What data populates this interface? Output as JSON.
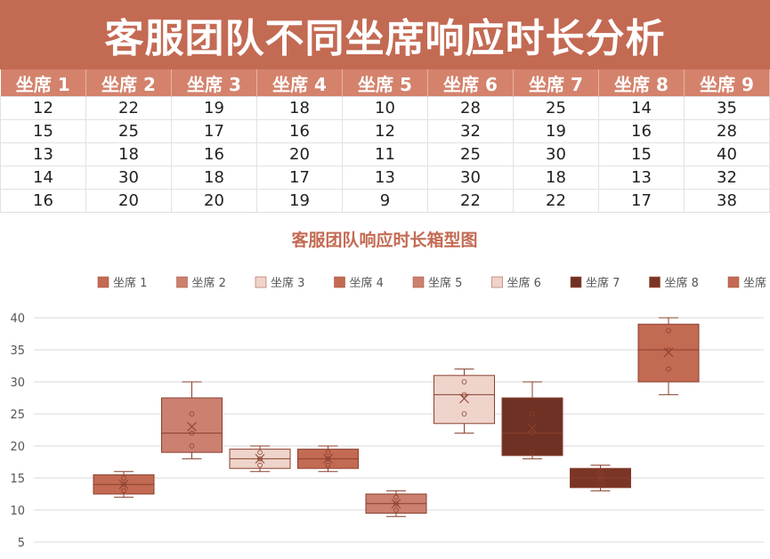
{
  "header": {
    "title": "客服团队不同坐席响应时长分析"
  },
  "table": {
    "columns": [
      "坐席 1",
      "坐席 2",
      "坐席 3",
      "坐席 4",
      "坐席 5",
      "坐席 6",
      "坐席 7",
      "坐席 8",
      "坐席 9"
    ],
    "rows": [
      [
        "12",
        "22",
        "19",
        "18",
        "10",
        "28",
        "25",
        "14",
        "35"
      ],
      [
        "15",
        "25",
        "17",
        "16",
        "12",
        "32",
        "19",
        "16",
        "28"
      ],
      [
        "13",
        "18",
        "16",
        "20",
        "11",
        "25",
        "30",
        "15",
        "40"
      ],
      [
        "14",
        "30",
        "18",
        "17",
        "13",
        "30",
        "18",
        "13",
        "32"
      ],
      [
        "16",
        "20",
        "20",
        "19",
        "9",
        "22",
        "22",
        "17",
        "38"
      ]
    ]
  },
  "chart_data": {
    "type": "box",
    "title": "客服团队响应时长箱型图",
    "legend_position": "top",
    "grid": true,
    "ylim": [
      5,
      40
    ],
    "yticks": [
      "5",
      "10",
      "15",
      "20",
      "25",
      "30",
      "35",
      "40"
    ],
    "series": [
      {
        "name": "坐席 1",
        "color": "#c36a53",
        "values": [
          12,
          15,
          13,
          14,
          16
        ]
      },
      {
        "name": "坐席 2",
        "color": "#cb8070",
        "values": [
          22,
          25,
          18,
          30,
          20
        ]
      },
      {
        "name": "坐席 3",
        "color": "#eed4cb",
        "values": [
          19,
          17,
          16,
          18,
          20
        ]
      },
      {
        "name": "坐席 4",
        "color": "#c36a53",
        "values": [
          18,
          16,
          20,
          17,
          19
        ]
      },
      {
        "name": "坐席 5",
        "color": "#cb8070",
        "values": [
          10,
          12,
          11,
          13,
          9
        ]
      },
      {
        "name": "坐席 6",
        "color": "#eed4cb",
        "values": [
          28,
          32,
          25,
          30,
          22
        ]
      },
      {
        "name": "坐席 7",
        "color": "#6e3124",
        "values": [
          25,
          19,
          30,
          18,
          22
        ]
      },
      {
        "name": "坐席 8",
        "color": "#7a3526",
        "values": [
          14,
          16,
          15,
          13,
          17
        ]
      },
      {
        "name": "坐席 9",
        "color": "#c36a53",
        "values": [
          35,
          28,
          40,
          32,
          38
        ]
      }
    ]
  }
}
